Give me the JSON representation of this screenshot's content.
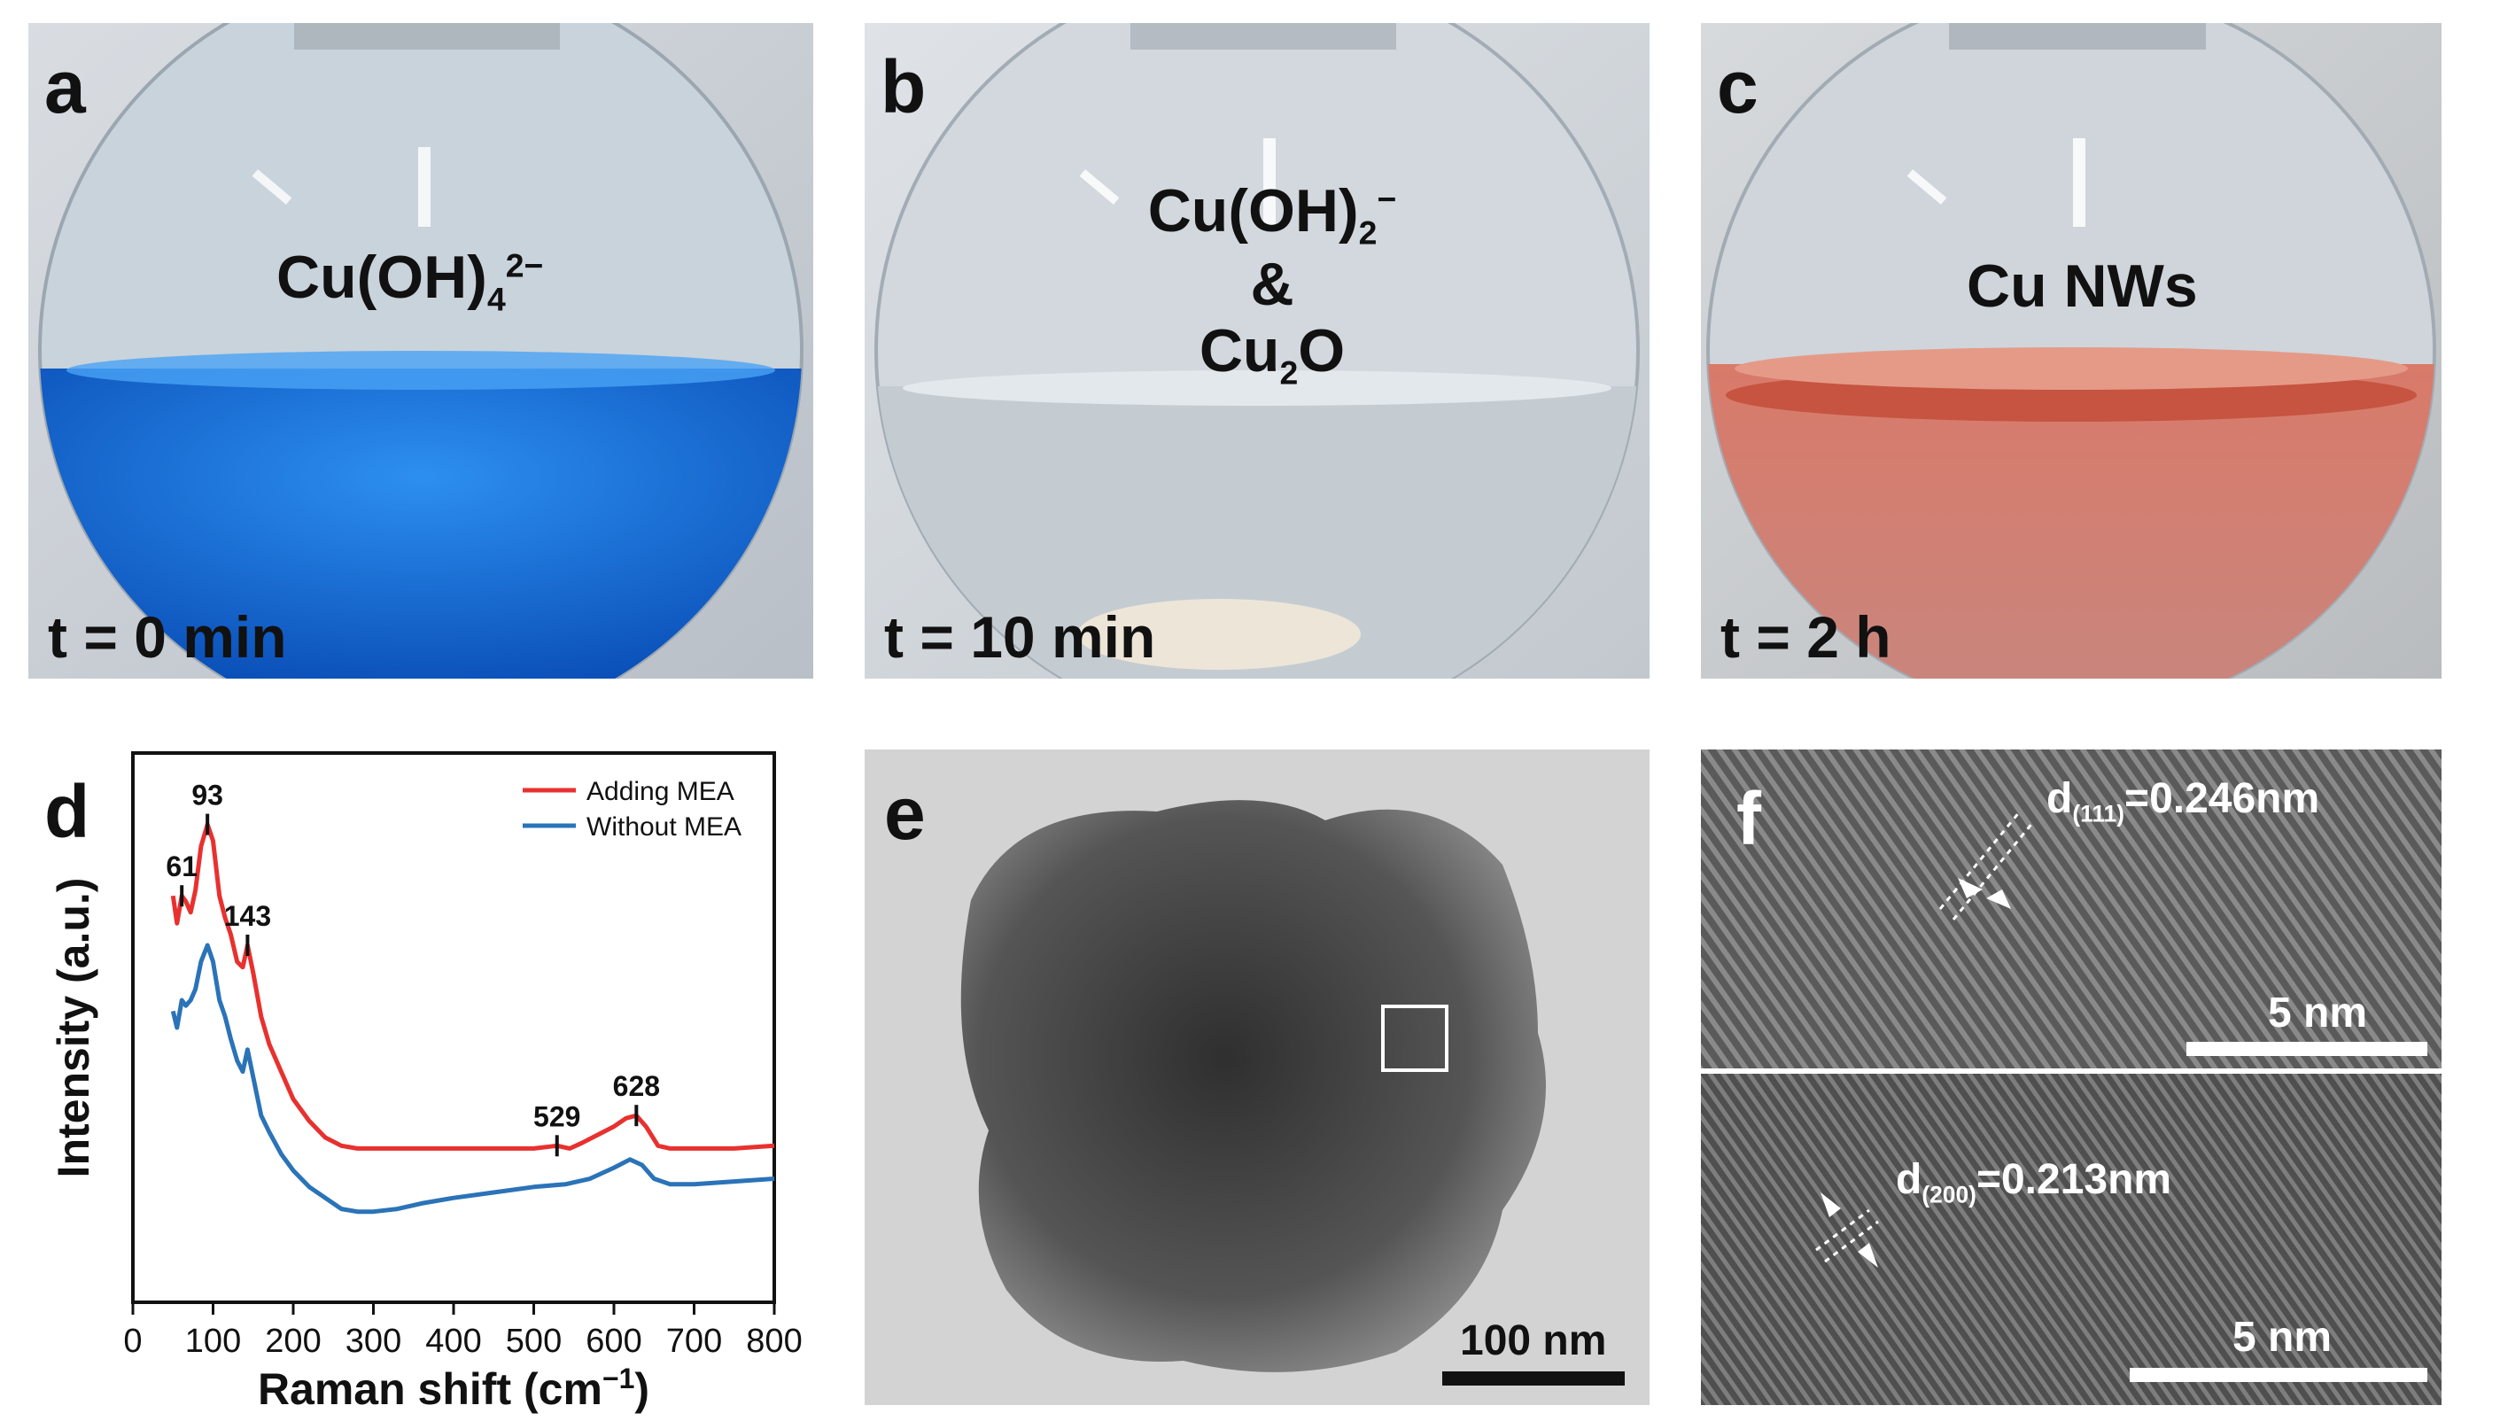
{
  "panels": {
    "a": {
      "letter": "a",
      "species_main": "Cu(OH)",
      "species_sub": "4",
      "species_sup": "2−",
      "time": "t = 0 min"
    },
    "b": {
      "letter": "b",
      "line1_main": "Cu(OH)",
      "line1_sub": "2",
      "line1_sup": "−",
      "line2": "&",
      "line3_main": "Cu",
      "line3_sub": "2",
      "line3_rest": "O",
      "time": "t = 10 min"
    },
    "c": {
      "letter": "c",
      "species": "Cu NWs",
      "time": "t = 2 h"
    },
    "e": {
      "letter": "e",
      "scale_label": "100 nm"
    },
    "f": {
      "letter": "f",
      "top_label_main": "d",
      "top_label_sub": "(111)",
      "top_label_rest": "=0.246nm",
      "bottom_label_main": "d",
      "bottom_label_sub": "(200)",
      "bottom_label_rest": "=0.213nm",
      "scale_label_top": "5 nm",
      "scale_label_bottom": "5 nm"
    }
  },
  "chart_data": {
    "panel_letter": "d",
    "type": "line",
    "xlabel_main": "Raman shift (cm",
    "xlabel_sup": "−1",
    "xlabel_end": ")",
    "ylabel": "Intensity (a.u.)",
    "xlim": [
      0,
      800
    ],
    "ylim": [
      0,
      1
    ],
    "xticks": [
      0,
      100,
      200,
      300,
      400,
      500,
      600,
      700,
      800
    ],
    "legend_position": "top-right",
    "series": [
      {
        "name": "Adding MEA",
        "color": "#e8312f",
        "points": [
          [
            50,
            0.74
          ],
          [
            55,
            0.69
          ],
          [
            61,
            0.74
          ],
          [
            66,
            0.73
          ],
          [
            72,
            0.71
          ],
          [
            78,
            0.75
          ],
          [
            85,
            0.83
          ],
          [
            93,
            0.87
          ],
          [
            100,
            0.84
          ],
          [
            108,
            0.74
          ],
          [
            115,
            0.7
          ],
          [
            122,
            0.67
          ],
          [
            130,
            0.62
          ],
          [
            137,
            0.61
          ],
          [
            143,
            0.65
          ],
          [
            150,
            0.6
          ],
          [
            160,
            0.52
          ],
          [
            170,
            0.47
          ],
          [
            185,
            0.42
          ],
          [
            200,
            0.37
          ],
          [
            220,
            0.33
          ],
          [
            240,
            0.3
          ],
          [
            260,
            0.285
          ],
          [
            280,
            0.28
          ],
          [
            300,
            0.28
          ],
          [
            350,
            0.28
          ],
          [
            400,
            0.28
          ],
          [
            450,
            0.28
          ],
          [
            500,
            0.28
          ],
          [
            529,
            0.285
          ],
          [
            545,
            0.28
          ],
          [
            560,
            0.29
          ],
          [
            580,
            0.305
          ],
          [
            600,
            0.32
          ],
          [
            615,
            0.335
          ],
          [
            628,
            0.34
          ],
          [
            640,
            0.32
          ],
          [
            655,
            0.285
          ],
          [
            670,
            0.28
          ],
          [
            700,
            0.28
          ],
          [
            750,
            0.28
          ],
          [
            800,
            0.285
          ]
        ]
      },
      {
        "name": "Without MEA",
        "color": "#2b73b8",
        "points": [
          [
            50,
            0.53
          ],
          [
            55,
            0.5
          ],
          [
            61,
            0.55
          ],
          [
            66,
            0.54
          ],
          [
            72,
            0.55
          ],
          [
            78,
            0.57
          ],
          [
            85,
            0.62
          ],
          [
            93,
            0.65
          ],
          [
            100,
            0.62
          ],
          [
            108,
            0.55
          ],
          [
            115,
            0.52
          ],
          [
            122,
            0.48
          ],
          [
            130,
            0.44
          ],
          [
            137,
            0.42
          ],
          [
            143,
            0.46
          ],
          [
            150,
            0.41
          ],
          [
            160,
            0.34
          ],
          [
            170,
            0.31
          ],
          [
            185,
            0.27
          ],
          [
            200,
            0.24
          ],
          [
            220,
            0.21
          ],
          [
            240,
            0.19
          ],
          [
            260,
            0.17
          ],
          [
            280,
            0.165
          ],
          [
            300,
            0.165
          ],
          [
            330,
            0.17
          ],
          [
            360,
            0.18
          ],
          [
            400,
            0.19
          ],
          [
            450,
            0.2
          ],
          [
            500,
            0.21
          ],
          [
            540,
            0.215
          ],
          [
            570,
            0.225
          ],
          [
            600,
            0.245
          ],
          [
            620,
            0.26
          ],
          [
            635,
            0.25
          ],
          [
            650,
            0.225
          ],
          [
            670,
            0.215
          ],
          [
            700,
            0.215
          ],
          [
            750,
            0.22
          ],
          [
            800,
            0.225
          ]
        ]
      }
    ],
    "annotations": [
      {
        "label": "61",
        "x": 61,
        "y": 0.74
      },
      {
        "label": "93",
        "x": 93,
        "y": 0.87
      },
      {
        "label": "143",
        "x": 143,
        "y": 0.65
      },
      {
        "label": "529",
        "x": 529,
        "y": 0.285
      },
      {
        "label": "628",
        "x": 628,
        "y": 0.34
      }
    ]
  }
}
